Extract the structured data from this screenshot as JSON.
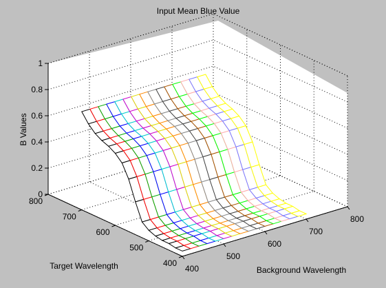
{
  "chart_data": {
    "type": "surface",
    "title": "Input Mean Blue Value",
    "xlabel": "Background Wavelength",
    "ylabel": "Target Wavelength",
    "zlabel": "B Values",
    "xlim": [
      400,
      800
    ],
    "ylim": [
      400,
      800
    ],
    "zlim": [
      0,
      1
    ],
    "xticks": [
      "400",
      "500",
      "600",
      "700",
      "800"
    ],
    "yticks": [
      "400",
      "500",
      "600",
      "700",
      "800"
    ],
    "zticks": [
      "0",
      "0.2",
      "0.4",
      "0.6",
      "0.8",
      "1"
    ],
    "grid": true,
    "background_wavelength": [
      400,
      420,
      440,
      460,
      480,
      500,
      520,
      540,
      560,
      580,
      600,
      620,
      640,
      660,
      680,
      700
    ],
    "target_wavelength": [
      400,
      420,
      440,
      460,
      480,
      500,
      520,
      540,
      560,
      580,
      600,
      620,
      640,
      660,
      680,
      700
    ],
    "b_values": [
      [
        0.04,
        0.04,
        0.04,
        0.04,
        0.04,
        0.04,
        0.04,
        0.04,
        0.04,
        0.04,
        0.04,
        0.04,
        0.04,
        0.04,
        0.04,
        0.04
      ],
      [
        0.04,
        0.04,
        0.04,
        0.04,
        0.04,
        0.04,
        0.04,
        0.04,
        0.04,
        0.04,
        0.04,
        0.04,
        0.04,
        0.04,
        0.04,
        0.04
      ],
      [
        0.05,
        0.05,
        0.05,
        0.05,
        0.05,
        0.05,
        0.05,
        0.05,
        0.05,
        0.05,
        0.05,
        0.05,
        0.05,
        0.05,
        0.05,
        0.05
      ],
      [
        0.05,
        0.05,
        0.05,
        0.05,
        0.05,
        0.05,
        0.05,
        0.05,
        0.05,
        0.05,
        0.05,
        0.05,
        0.05,
        0.05,
        0.05,
        0.05
      ],
      [
        0.06,
        0.06,
        0.06,
        0.06,
        0.06,
        0.06,
        0.06,
        0.06,
        0.06,
        0.06,
        0.06,
        0.06,
        0.06,
        0.06,
        0.06,
        0.06
      ],
      [
        0.08,
        0.08,
        0.08,
        0.08,
        0.08,
        0.08,
        0.08,
        0.08,
        0.08,
        0.08,
        0.08,
        0.08,
        0.08,
        0.08,
        0.08,
        0.08
      ],
      [
        0.12,
        0.12,
        0.12,
        0.12,
        0.12,
        0.12,
        0.12,
        0.12,
        0.12,
        0.12,
        0.12,
        0.12,
        0.12,
        0.12,
        0.12,
        0.12
      ],
      [
        0.25,
        0.25,
        0.25,
        0.25,
        0.25,
        0.25,
        0.25,
        0.25,
        0.25,
        0.25,
        0.25,
        0.25,
        0.25,
        0.25,
        0.25,
        0.25
      ],
      [
        0.4,
        0.4,
        0.4,
        0.4,
        0.4,
        0.4,
        0.4,
        0.4,
        0.4,
        0.4,
        0.4,
        0.4,
        0.4,
        0.4,
        0.4,
        0.4
      ],
      [
        0.5,
        0.5,
        0.5,
        0.5,
        0.5,
        0.5,
        0.5,
        0.5,
        0.5,
        0.5,
        0.5,
        0.5,
        0.5,
        0.5,
        0.5,
        0.5
      ],
      [
        0.55,
        0.55,
        0.55,
        0.55,
        0.55,
        0.55,
        0.55,
        0.55,
        0.55,
        0.55,
        0.55,
        0.55,
        0.55,
        0.55,
        0.55,
        0.55
      ],
      [
        0.58,
        0.58,
        0.58,
        0.58,
        0.58,
        0.58,
        0.58,
        0.58,
        0.58,
        0.58,
        0.58,
        0.58,
        0.58,
        0.58,
        0.58,
        0.58
      ],
      [
        0.6,
        0.6,
        0.6,
        0.6,
        0.6,
        0.6,
        0.6,
        0.6,
        0.6,
        0.6,
        0.6,
        0.6,
        0.6,
        0.6,
        0.6,
        0.6
      ],
      [
        0.63,
        0.63,
        0.63,
        0.63,
        0.63,
        0.63,
        0.63,
        0.63,
        0.63,
        0.63,
        0.63,
        0.63,
        0.63,
        0.63,
        0.63,
        0.63
      ],
      [
        0.68,
        0.68,
        0.68,
        0.68,
        0.68,
        0.68,
        0.68,
        0.68,
        0.68,
        0.68,
        0.68,
        0.68,
        0.68,
        0.68,
        0.68,
        0.68
      ],
      [
        0.75,
        0.75,
        0.75,
        0.75,
        0.75,
        0.75,
        0.75,
        0.75,
        0.75,
        0.75,
        0.75,
        0.75,
        0.75,
        0.75,
        0.75,
        0.75
      ]
    ],
    "colors": {
      "figure_background": "#c0c0c0",
      "axes_background": "#ffffff",
      "series": [
        "#000000",
        "#ff0000",
        "#00aa00",
        "#0000ff",
        "#00cccc",
        "#cc00cc",
        "#dddd00",
        "#ff8800",
        "#888888",
        "#444444",
        "#aa5500",
        "#00ff00",
        "#ffaaaa",
        "#7777ff",
        "#ffff00",
        "#990000"
      ]
    }
  }
}
